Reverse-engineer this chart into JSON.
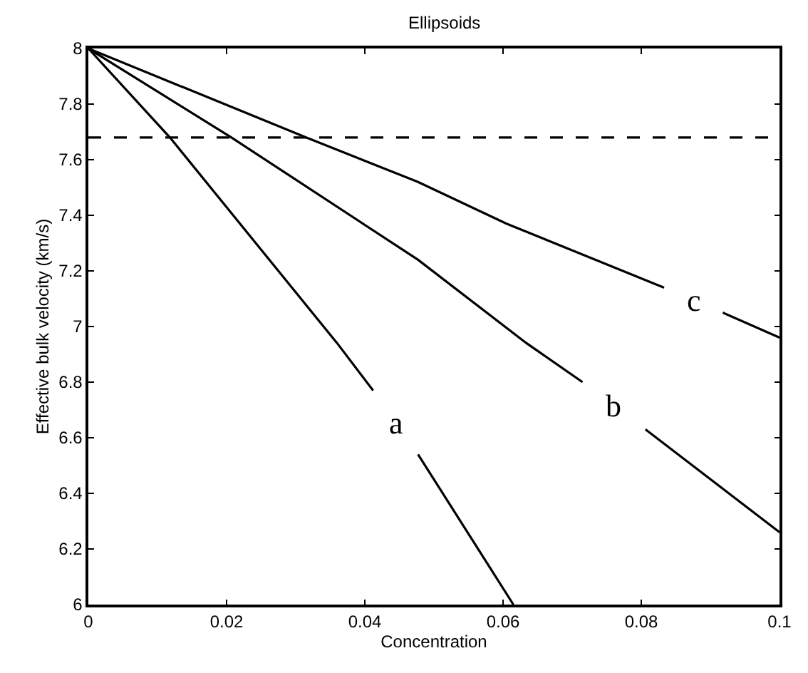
{
  "chart_data": {
    "type": "line",
    "title": "Ellipsoids",
    "xlabel": "Concentration",
    "ylabel": "Effective bulk velocity (km/s)",
    "xlim": [
      0,
      0.1
    ],
    "xticks": [
      0,
      0.02,
      0.04,
      0.06,
      0.08,
      {
        "value": 0.1,
        "label": "0.1"
      }
    ],
    "ylim": [
      6,
      8
    ],
    "yticks": [
      6,
      6.2,
      6.4,
      6.6,
      6.8,
      7,
      7.2,
      7.4,
      7.6,
      7.8,
      8
    ],
    "legend": false,
    "marker": "none",
    "line_style": "solid",
    "series": [
      {
        "name": "a",
        "color": "#000000",
        "x": [
          0,
          0.0118,
          0.036,
          0.0412,
          0.0445,
          0.0477,
          0.0615
        ],
        "values": [
          8,
          7.68,
          6.94,
          6.77,
          null,
          6.54,
          6.0
        ]
      },
      {
        "name": "b",
        "color": "#000000",
        "x": [
          0,
          0.0207,
          0.0477,
          0.0634,
          0.0715,
          0.076,
          0.0806,
          0.1
        ],
        "values": [
          8,
          7.68,
          7.24,
          6.94,
          6.8,
          null,
          6.63,
          6.26
        ]
      },
      {
        "name": "c",
        "color": "#000000",
        "x": [
          0,
          0.0315,
          0.0477,
          0.0605,
          0.0833,
          0.0875,
          0.0918,
          0.1
        ],
        "values": [
          8,
          7.68,
          7.52,
          7.37,
          7.14,
          null,
          7.05,
          6.96
        ]
      }
    ],
    "ref_lines": [
      {
        "axis": "y",
        "value": 7.68,
        "color": "#000000",
        "line_style": "dashed"
      }
    ]
  }
}
